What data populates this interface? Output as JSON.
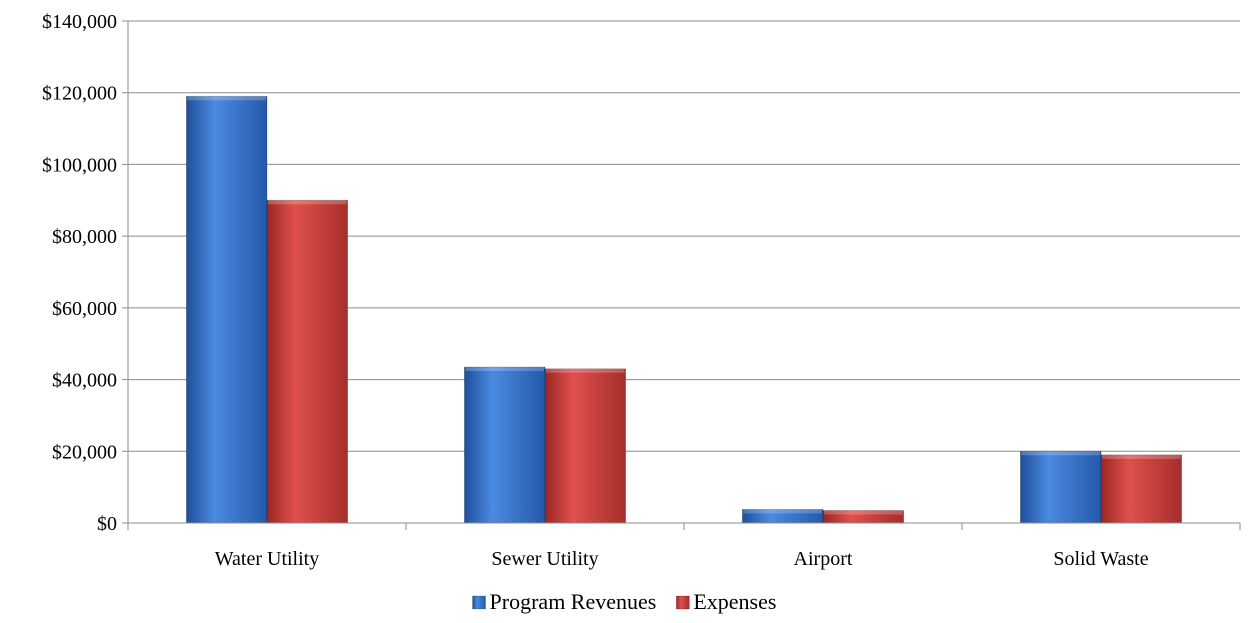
{
  "chart_data": {
    "type": "bar",
    "categories": [
      "Water Utility",
      "Sewer Utility",
      "Airport",
      "Solid Waste"
    ],
    "series": [
      {
        "name": "Program Revenues",
        "color": "#2f6fc7",
        "values": [
          119000,
          43500,
          3800,
          20000
        ]
      },
      {
        "name": "Expenses",
        "color": "#c83a37",
        "values": [
          90000,
          43000,
          3500,
          19000
        ]
      }
    ],
    "ylim": [
      0,
      140000
    ],
    "yticks": [
      0,
      20000,
      40000,
      60000,
      80000,
      100000,
      120000,
      140000
    ],
    "ytick_labels": [
      "$0",
      "$20,000",
      "$40,000",
      "$60,000",
      "$80,000",
      "$100,000",
      "$120,000",
      "$140,000"
    ],
    "grid": true,
    "legend_position": "bottom",
    "title": "",
    "xlabel": "",
    "ylabel": ""
  }
}
